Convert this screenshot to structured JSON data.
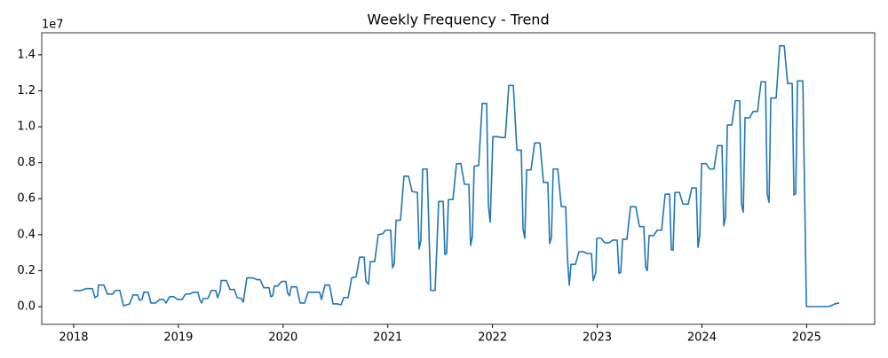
{
  "chart_data": {
    "type": "line",
    "title": "Weekly Frequency - Trend",
    "y_offset_label": "1e7",
    "x": [
      2018.0,
      2018.059,
      2018.119,
      2018.178,
      2018.204,
      2018.229,
      2018.237,
      2018.288,
      2018.322,
      2018.373,
      2018.399,
      2018.441,
      2018.475,
      2018.534,
      2018.568,
      2018.611,
      2018.628,
      2018.653,
      2018.67,
      2018.712,
      2018.738,
      2018.78,
      2018.823,
      2018.857,
      2018.882,
      2018.916,
      2018.958,
      2018.992,
      2019.035,
      2019.069,
      2019.111,
      2019.145,
      2019.187,
      2019.204,
      2019.221,
      2019.238,
      2019.281,
      2019.315,
      2019.357,
      2019.374,
      2019.4,
      2019.408,
      2019.459,
      2019.493,
      2019.535,
      2019.561,
      2019.603,
      2019.62,
      2019.654,
      2019.713,
      2019.747,
      2019.781,
      2019.815,
      2019.866,
      2019.883,
      2019.9,
      2019.917,
      2019.951,
      2019.985,
      2020.027,
      2020.044,
      2020.061,
      2020.078,
      2020.129,
      2020.163,
      2020.205,
      2020.239,
      2020.307,
      2020.35,
      2020.366,
      2020.4,
      2020.443,
      2020.477,
      2020.519,
      2020.553,
      2020.579,
      2020.621,
      2020.655,
      2020.697,
      2020.731,
      2020.774,
      2020.791,
      2020.816,
      2020.833,
      2020.875,
      2020.909,
      2020.952,
      2020.977,
      2021.028,
      2021.045,
      2021.062,
      2021.079,
      2021.121,
      2021.155,
      2021.198,
      2021.232,
      2021.283,
      2021.299,
      2021.316,
      2021.333,
      2021.376,
      2021.41,
      2021.452,
      2021.486,
      2021.529,
      2021.545,
      2021.562,
      2021.579,
      2021.622,
      2021.656,
      2021.698,
      2021.732,
      2021.774,
      2021.791,
      2021.808,
      2021.825,
      2021.868,
      2021.902,
      2021.944,
      2021.961,
      2021.978,
      2022.004,
      2022.046,
      2022.088,
      2022.122,
      2022.156,
      2022.199,
      2022.233,
      2022.275,
      2022.292,
      2022.309,
      2022.326,
      2022.368,
      2022.402,
      2022.453,
      2022.487,
      2022.529,
      2022.546,
      2022.563,
      2022.58,
      2022.623,
      2022.657,
      2022.699,
      2022.716,
      2022.733,
      2022.75,
      2022.792,
      2022.826,
      2022.869,
      2022.903,
      2022.945,
      2022.962,
      2022.987,
      2022.996,
      2023.038,
      2023.072,
      2023.115,
      2023.149,
      2023.191,
      2023.208,
      2023.225,
      2023.242,
      2023.284,
      2023.318,
      2023.369,
      2023.403,
      2023.445,
      2023.462,
      2023.479,
      2023.496,
      2023.539,
      2023.573,
      2023.615,
      2023.649,
      2023.691,
      2023.708,
      2023.725,
      2023.742,
      2023.785,
      2023.819,
      2023.87,
      2023.903,
      2023.946,
      2023.963,
      2023.98,
      2023.997,
      2024.039,
      2024.073,
      2024.115,
      2024.149,
      2024.192,
      2024.209,
      2024.226,
      2024.243,
      2024.285,
      2024.319,
      2024.361,
      2024.378,
      2024.395,
      2024.412,
      2024.455,
      2024.489,
      2024.531,
      2024.565,
      2024.607,
      2024.624,
      2024.641,
      2024.658,
      2024.709,
      2024.743,
      2024.786,
      2024.819,
      2024.862,
      2024.879,
      2024.896,
      2024.913,
      2024.964,
      2024.998,
      2025.201,
      2025.235,
      2025.269,
      2025.311
    ],
    "series": [
      {
        "color": "#1f77b4",
        "values": [
          0.09,
          0.088,
          0.1,
          0.1,
          0.05,
          0.06,
          0.12,
          0.12,
          0.07,
          0.07,
          0.09,
          0.09,
          0.005,
          0.015,
          0.065,
          0.065,
          0.035,
          0.04,
          0.08,
          0.08,
          0.02,
          0.02,
          0.04,
          0.04,
          0.02,
          0.055,
          0.055,
          0.04,
          0.04,
          0.07,
          0.07,
          0.08,
          0.08,
          0.04,
          0.02,
          0.045,
          0.045,
          0.09,
          0.09,
          0.05,
          0.09,
          0.145,
          0.145,
          0.095,
          0.095,
          0.05,
          0.045,
          0.025,
          0.16,
          0.16,
          0.15,
          0.15,
          0.105,
          0.105,
          0.055,
          0.06,
          0.115,
          0.115,
          0.14,
          0.14,
          0.075,
          0.06,
          0.11,
          0.11,
          0.02,
          0.02,
          0.08,
          0.08,
          0.08,
          0.04,
          0.12,
          0.12,
          0.015,
          0.015,
          0.01,
          0.05,
          0.05,
          0.16,
          0.165,
          0.275,
          0.275,
          0.14,
          0.125,
          0.25,
          0.25,
          0.4,
          0.405,
          0.425,
          0.425,
          0.215,
          0.24,
          0.48,
          0.48,
          0.725,
          0.725,
          0.64,
          0.635,
          0.32,
          0.37,
          0.765,
          0.765,
          0.09,
          0.09,
          0.585,
          0.585,
          0.29,
          0.295,
          0.595,
          0.595,
          0.795,
          0.795,
          0.68,
          0.68,
          0.34,
          0.39,
          0.78,
          0.785,
          1.13,
          1.13,
          0.56,
          0.47,
          0.945,
          0.945,
          0.94,
          0.94,
          1.23,
          1.23,
          0.87,
          0.87,
          0.43,
          0.38,
          0.76,
          0.76,
          0.91,
          0.91,
          0.69,
          0.69,
          0.35,
          0.385,
          0.765,
          0.765,
          0.555,
          0.555,
          0.27,
          0.12,
          0.235,
          0.235,
          0.305,
          0.305,
          0.295,
          0.295,
          0.145,
          0.19,
          0.38,
          0.38,
          0.355,
          0.355,
          0.37,
          0.37,
          0.185,
          0.19,
          0.375,
          0.375,
          0.555,
          0.555,
          0.445,
          0.445,
          0.22,
          0.2,
          0.395,
          0.395,
          0.425,
          0.425,
          0.625,
          0.625,
          0.315,
          0.315,
          0.635,
          0.635,
          0.57,
          0.57,
          0.66,
          0.66,
          0.33,
          0.395,
          0.795,
          0.795,
          0.765,
          0.765,
          0.895,
          0.895,
          0.45,
          0.5,
          1.01,
          1.01,
          1.145,
          1.145,
          0.57,
          0.525,
          1.05,
          1.05,
          1.085,
          1.085,
          1.25,
          1.25,
          0.625,
          0.58,
          1.16,
          1.16,
          1.45,
          1.45,
          1.24,
          1.24,
          0.62,
          0.63,
          1.255,
          1.255,
          0,
          0,
          0.005,
          0.015,
          0.02
        ]
      }
    ],
    "xlim": [
      2017.695,
      2025.65
    ],
    "xticks": [
      2018,
      2019,
      2020,
      2021,
      2022,
      2023,
      2024,
      2025
    ],
    "ylim": [
      -0.0985,
      1.5225
    ],
    "yticks": [
      {
        "value": 0,
        "label": "0.0"
      },
      {
        "value": 0.2,
        "label": "0.2"
      },
      {
        "value": 0.4,
        "label": "0.4"
      },
      {
        "value": 0.6,
        "label": "0.6"
      },
      {
        "value": 0.8,
        "label": "0.8"
      },
      {
        "value": 1,
        "label": "1.0"
      },
      {
        "value": 1.2,
        "label": "1.2"
      },
      {
        "value": 1.4,
        "label": "1.4"
      }
    ]
  }
}
